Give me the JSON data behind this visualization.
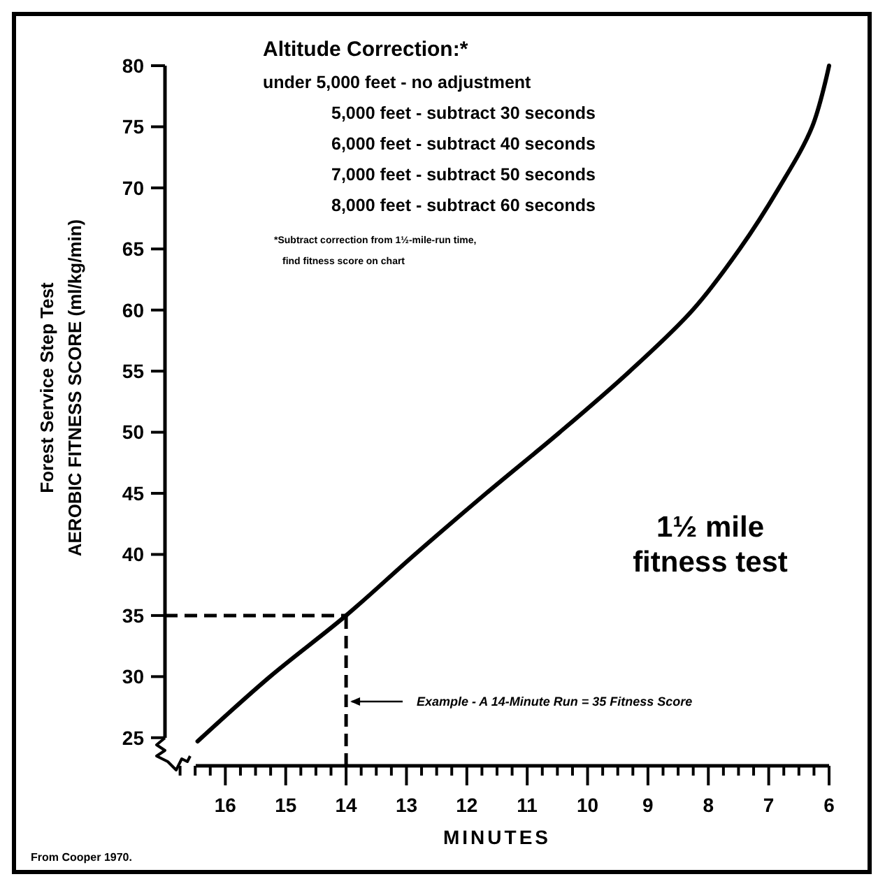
{
  "chart_data": {
    "type": "line",
    "xlabel": "MINUTES",
    "ylabel": "Forest Service Step Test\nAEROBIC FITNESS SCORE (ml/kg/min)",
    "x": [
      16.46,
      15.26,
      14,
      12.86,
      11.68,
      10.46,
      9.3,
      8.26,
      7.48,
      6.83,
      6.28,
      6
    ],
    "series": [
      {
        "color": "#000000",
        "values": [
          24.7,
          30,
          35,
          40,
          45,
          50,
          55,
          60,
          65,
          70,
          75,
          80
        ]
      }
    ],
    "xlim": [
      17,
      6
    ],
    "xticks": [
      16,
      15,
      14,
      13,
      12,
      11,
      10,
      9,
      8,
      7,
      6,
      {
        "value": 16.75,
        "label": null
      },
      {
        "value": 16.5,
        "label": null
      },
      {
        "value": 16.25,
        "label": null
      },
      {
        "value": 15.75,
        "label": null
      },
      {
        "value": 15.5,
        "label": null
      },
      {
        "value": 15.25,
        "label": null
      },
      {
        "value": 14.75,
        "label": null
      },
      {
        "value": 14.5,
        "label": null
      },
      {
        "value": 14.25,
        "label": null
      },
      {
        "value": 13.75,
        "label": null
      },
      {
        "value": 13.5,
        "label": null
      },
      {
        "value": 13.25,
        "label": null
      },
      {
        "value": 12.75,
        "label": null
      },
      {
        "value": 12.5,
        "label": null
      },
      {
        "value": 12.25,
        "label": null
      },
      {
        "value": 11.75,
        "label": null
      },
      {
        "value": 11.5,
        "label": null
      },
      {
        "value": 11.25,
        "label": null
      },
      {
        "value": 10.75,
        "label": null
      },
      {
        "value": 10.5,
        "label": null
      },
      {
        "value": 10.25,
        "label": null
      },
      {
        "value": 9.75,
        "label": null
      },
      {
        "value": 9.5,
        "label": null
      },
      {
        "value": 9.25,
        "label": null
      },
      {
        "value": 8.75,
        "label": null
      },
      {
        "value": 8.5,
        "label": null
      },
      {
        "value": 8.25,
        "label": null
      },
      {
        "value": 7.75,
        "label": null
      },
      {
        "value": 7.5,
        "label": null
      },
      {
        "value": 7.25,
        "label": null
      },
      {
        "value": 6.75,
        "label": null
      },
      {
        "value": 6.5,
        "label": null
      },
      {
        "value": 6.25,
        "label": null
      }
    ],
    "ylim": [
      22.7,
      80
    ],
    "yticks": [
      25,
      30,
      35,
      40,
      45,
      50,
      55,
      60,
      65,
      70,
      75,
      80
    ],
    "grid": false,
    "marker": "none",
    "line_style": "solid",
    "ref_lines": [
      {
        "axis": "y",
        "value": 35,
        "line_style": "dashed"
      },
      {
        "axis": "x",
        "value": 14,
        "line_style": "dashed"
      }
    ],
    "annotations": [
      "Altitude Correction:*",
      "under 5,000 feet - no adjustment",
      "5,000 feet - subtract 30 seconds",
      "6,000 feet - subtract 40 seconds",
      "7,000 feet - subtract 50 seconds",
      "8,000 feet - subtract 60 seconds",
      "*Subtract correction from 1½-mile-run time,",
      "find fitness score on chart",
      "1½ mile",
      "fitness test",
      "From Cooper 1970.",
      "Example - A 14-Minute Run = 35 Fitness Score"
    ]
  }
}
